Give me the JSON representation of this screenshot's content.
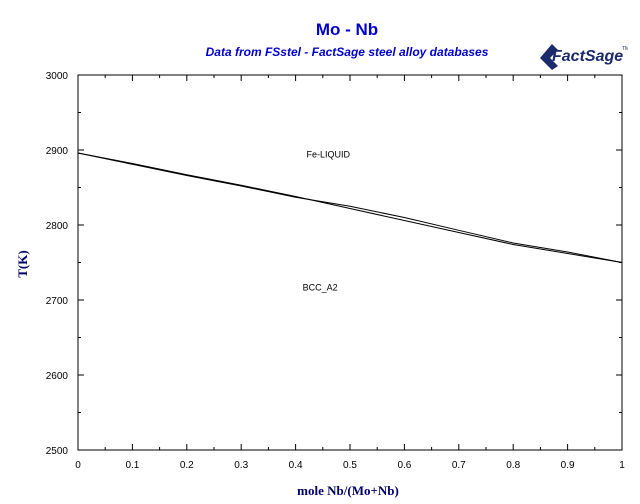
{
  "header": {
    "title": "Mo - Nb",
    "subtitle": "Data from FSstel - FactSage steel alloy databases",
    "logo_text": "FactSage",
    "logo_tm": "TM"
  },
  "colors": {
    "title": "#0000cc",
    "axis_title": "#000066",
    "curves": "#000000",
    "logo": "#1a2a6c"
  },
  "chart_data": {
    "type": "line",
    "title": "Mo - Nb",
    "subtitle": "Data from FSstel - FactSage steel alloy databases",
    "xlabel": "mole Nb/(Mo+Nb)",
    "ylabel": "T(K)",
    "xlim": [
      0,
      1
    ],
    "ylim": [
      2500,
      3000
    ],
    "xticks": [
      0,
      0.1,
      0.2,
      0.3,
      0.4,
      0.5,
      0.6,
      0.7,
      0.8,
      0.9,
      1
    ],
    "xtick_labels": [
      "0",
      "0.1",
      "0.2",
      "0.3",
      "0.4",
      "0.5",
      "0.6",
      "0.7",
      "0.8",
      "0.9",
      "1"
    ],
    "yticks": [
      2500,
      2600,
      2700,
      2800,
      2900,
      3000
    ],
    "ytick_labels": [
      "2500",
      "2600",
      "2700",
      "2800",
      "2900",
      "3000"
    ],
    "grid": false,
    "series": [
      {
        "x": [
          0,
          0.1,
          0.2,
          0.3,
          0.4,
          0.5,
          0.6,
          0.7,
          0.8,
          0.9,
          1
        ],
        "y": [
          2896,
          2882,
          2867,
          2853,
          2838,
          2822,
          2806,
          2790,
          2774,
          2762,
          2750
        ]
      },
      {
        "x": [
          0,
          0.1,
          0.2,
          0.3,
          0.4,
          0.5,
          0.6,
          0.7,
          0.8,
          0.9,
          1
        ],
        "y": [
          2896,
          2881,
          2866,
          2852,
          2837,
          2825,
          2810,
          2793,
          2776,
          2764,
          2750
        ]
      }
    ],
    "annotations": [
      {
        "text": "Fe-LIQUID",
        "x": 0.46,
        "y": 2890
      },
      {
        "text": "BCC_A2",
        "x": 0.445,
        "y": 2713
      }
    ]
  }
}
